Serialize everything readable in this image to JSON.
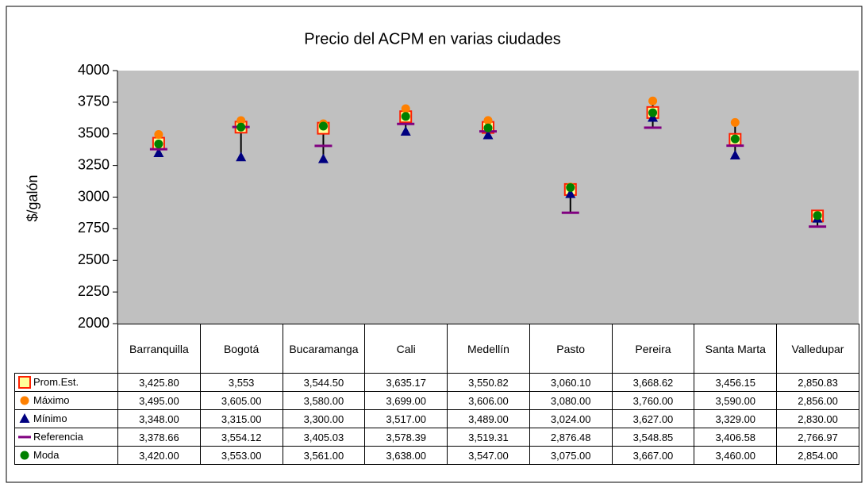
{
  "chart_data": {
    "type": "scatter",
    "title": "Precio del ACPM en varias ciudades",
    "y_label": "$/galón",
    "categories": [
      "Barranquilla",
      "Bogotá",
      "Bucaramanga",
      "Cali",
      "Medellín",
      "Pasto",
      "Pereira",
      "Santa Marta",
      "Valledupar"
    ],
    "ylim": [
      2000,
      4000
    ],
    "yticks": [
      2000,
      2250,
      2500,
      2750,
      3000,
      3250,
      3500,
      3750,
      4000
    ],
    "grid": false,
    "high_low_lines": true,
    "series": [
      {
        "name": "Prom.Est.",
        "color": "#ff2000",
        "marker": "square",
        "values": [
          3425.8,
          3553,
          3544.5,
          3635.17,
          3550.82,
          3060.1,
          3668.62,
          3456.15,
          2850.83
        ],
        "value_labels": [
          "3,425.80",
          "3,553",
          "3,544.50",
          "3,635.17",
          "3,550.82",
          "3,060.10",
          "3,668.62",
          "3,456.15",
          "2,850.83"
        ]
      },
      {
        "name": "Máximo",
        "color": "#ff8000",
        "marker": "circle",
        "values": [
          3495,
          3605,
          3580,
          3699,
          3606,
          3080,
          3760,
          3590,
          2856
        ],
        "value_labels": [
          "3,495.00",
          "3,605.00",
          "3,580.00",
          "3,699.00",
          "3,606.00",
          "3,080.00",
          "3,760.00",
          "3,590.00",
          "2,856.00"
        ]
      },
      {
        "name": "Mínimo",
        "color": "#000080",
        "marker": "triangle",
        "values": [
          3348,
          3315,
          3300,
          3517,
          3489,
          3024,
          3627,
          3329,
          2830
        ],
        "value_labels": [
          "3,348.00",
          "3,315.00",
          "3,300.00",
          "3,517.00",
          "3,489.00",
          "3,024.00",
          "3,627.00",
          "3,329.00",
          "2,830.00"
        ]
      },
      {
        "name": "Referencia",
        "color": "#800080",
        "marker": "dash",
        "values": [
          3378.66,
          3554.12,
          3405.03,
          3578.39,
          3519.31,
          2876.48,
          3548.85,
          3406.58,
          2766.97
        ],
        "value_labels": [
          "3,378.66",
          "3,554.12",
          "3,405.03",
          "3,578.39",
          "3,519.31",
          "2,876.48",
          "3,548.85",
          "3,406.58",
          "2,766.97"
        ]
      },
      {
        "name": "Moda",
        "color": "#008000",
        "marker": "circle",
        "values": [
          3420,
          3553,
          3561,
          3638,
          3547,
          3075,
          3667,
          3460,
          2854
        ],
        "value_labels": [
          "3,420.00",
          "3,553.00",
          "3,561.00",
          "3,638.00",
          "3,547.00",
          "3,075.00",
          "3,667.00",
          "3,460.00",
          "2,854.00"
        ]
      }
    ]
  }
}
